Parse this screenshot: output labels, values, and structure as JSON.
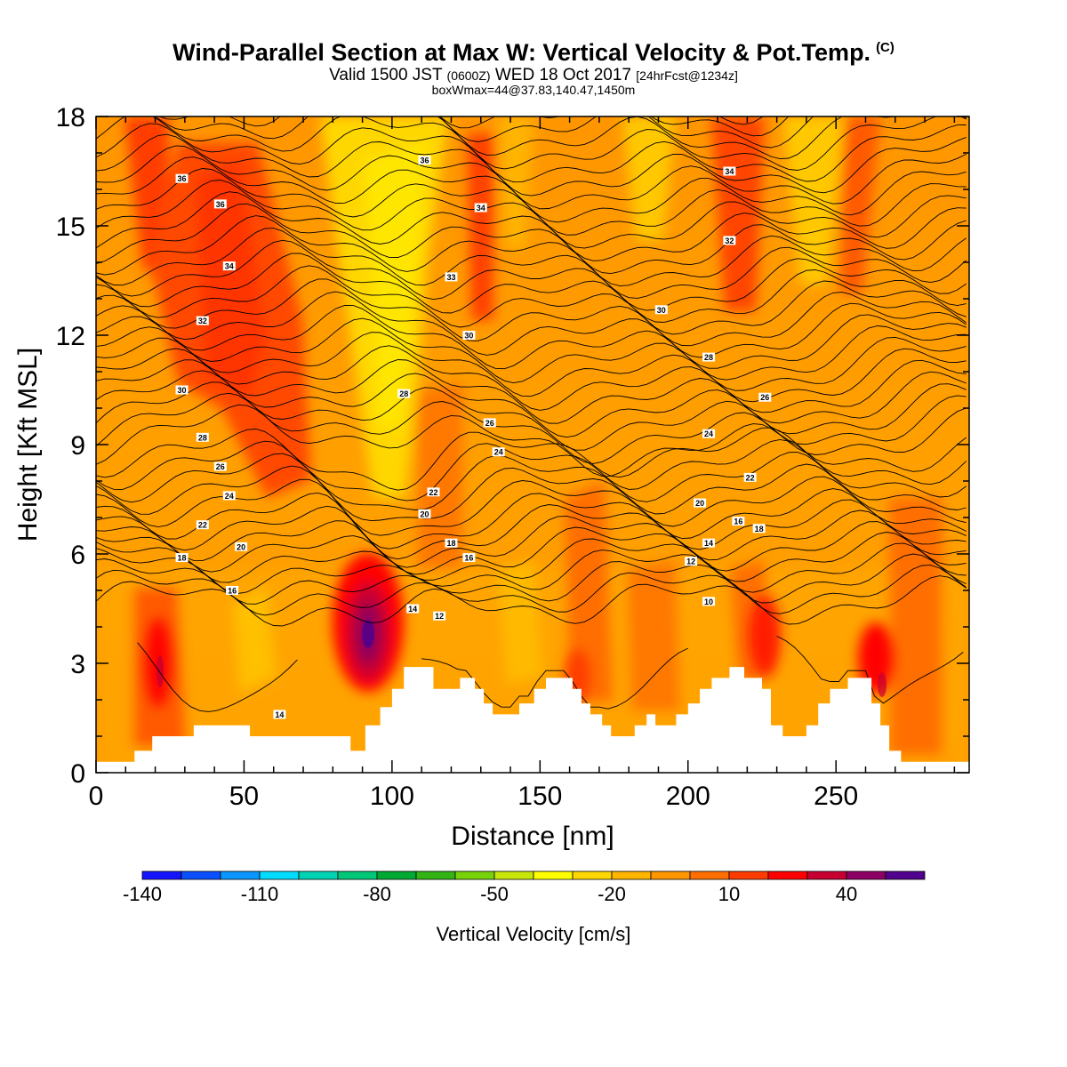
{
  "title": {
    "main": "Wind-Parallel Section at Max W: Vertical Velocity & Pot.Temp.",
    "copyright": "(C)",
    "valid_prefix": "Valid 1500 JST",
    "valid_utc": "(0600Z)",
    "valid_date": "WED 18 Oct 2017",
    "forecast": "[24hrFcst@1234z]",
    "box_info": "boxWmax=44@37.83,140.47,1450m"
  },
  "chart_data": {
    "type": "heatmap",
    "xlabel": "Distance [nm]",
    "ylabel": "Height [Kft MSL]",
    "xlim": [
      0,
      295
    ],
    "ylim": [
      0,
      18
    ],
    "x_ticks": [
      0,
      50,
      100,
      150,
      200,
      250
    ],
    "y_ticks": [
      0,
      3,
      6,
      9,
      12,
      15,
      18
    ],
    "colorbar": {
      "label": "Vertical Velocity [cm/s]",
      "tick_labels": [
        "-140",
        "-110",
        "-80",
        "-50",
        "-20",
        "10",
        "40"
      ],
      "tick_values": [
        -140,
        -110,
        -80,
        -50,
        -20,
        10,
        40
      ],
      "levels": [
        -140,
        -130,
        -120,
        -110,
        -100,
        -90,
        -80,
        -70,
        -60,
        -50,
        -40,
        -30,
        -20,
        -10,
        0,
        10,
        20,
        30,
        40,
        50,
        60
      ],
      "colors": [
        "#1414ff",
        "#0a50ff",
        "#0a96ff",
        "#00dcff",
        "#00d2b4",
        "#00c878",
        "#00aa32",
        "#32b414",
        "#78d20a",
        "#c8e60a",
        "#ffff00",
        "#ffd700",
        "#ffb400",
        "#ff9600",
        "#ff6e00",
        "#ff3c00",
        "#ff0000",
        "#c80032",
        "#8c0064",
        "#50008c"
      ]
    },
    "terrain": [
      [
        0,
        0.3
      ],
      [
        13,
        0.3
      ],
      [
        13,
        0.6
      ],
      [
        19,
        0.6
      ],
      [
        19,
        1.0
      ],
      [
        33,
        1.0
      ],
      [
        33,
        1.3
      ],
      [
        52,
        1.3
      ],
      [
        52,
        1.0
      ],
      [
        86,
        1.0
      ],
      [
        86,
        0.6
      ],
      [
        91,
        0.6
      ],
      [
        91,
        1.3
      ],
      [
        96,
        1.3
      ],
      [
        96,
        1.8
      ],
      [
        100,
        1.8
      ],
      [
        100,
        2.3
      ],
      [
        104,
        2.3
      ],
      [
        104,
        2.9
      ],
      [
        114,
        2.9
      ],
      [
        114,
        2.3
      ],
      [
        123,
        2.3
      ],
      [
        123,
        2.6
      ],
      [
        128,
        2.6
      ],
      [
        128,
        2.3
      ],
      [
        131,
        2.3
      ],
      [
        131,
        1.9
      ],
      [
        134,
        1.9
      ],
      [
        134,
        1.6
      ],
      [
        143,
        1.6
      ],
      [
        143,
        1.9
      ],
      [
        148,
        1.9
      ],
      [
        148,
        2.3
      ],
      [
        152,
        2.3
      ],
      [
        152,
        2.6
      ],
      [
        161,
        2.6
      ],
      [
        161,
        2.3
      ],
      [
        164,
        2.3
      ],
      [
        164,
        1.9
      ],
      [
        167,
        1.9
      ],
      [
        167,
        1.6
      ],
      [
        171,
        1.6
      ],
      [
        171,
        1.3
      ],
      [
        174,
        1.3
      ],
      [
        174,
        1.0
      ],
      [
        182,
        1.0
      ],
      [
        182,
        1.3
      ],
      [
        186,
        1.3
      ],
      [
        186,
        1.6
      ],
      [
        189,
        1.6
      ],
      [
        189,
        1.3
      ],
      [
        196,
        1.3
      ],
      [
        196,
        1.6
      ],
      [
        200,
        1.6
      ],
      [
        200,
        1.9
      ],
      [
        204,
        1.9
      ],
      [
        204,
        2.3
      ],
      [
        208,
        2.3
      ],
      [
        208,
        2.6
      ],
      [
        214,
        2.6
      ],
      [
        214,
        2.9
      ],
      [
        219,
        2.9
      ],
      [
        219,
        2.6
      ],
      [
        225,
        2.6
      ],
      [
        225,
        2.3
      ],
      [
        228,
        2.3
      ],
      [
        228,
        1.3
      ],
      [
        232,
        1.3
      ],
      [
        232,
        1.0
      ],
      [
        240,
        1.0
      ],
      [
        240,
        1.3
      ],
      [
        244,
        1.3
      ],
      [
        244,
        1.9
      ],
      [
        248,
        1.9
      ],
      [
        248,
        2.3
      ],
      [
        254,
        2.3
      ],
      [
        254,
        2.6
      ],
      [
        262,
        2.6
      ],
      [
        262,
        1.9
      ],
      [
        265,
        1.9
      ],
      [
        265,
        1.3
      ],
      [
        268,
        1.3
      ],
      [
        268,
        0.6
      ],
      [
        272,
        0.6
      ],
      [
        272,
        0.3
      ],
      [
        295,
        0.3
      ]
    ],
    "contour_labels": [
      {
        "text": "36",
        "x": 29,
        "y": 16.3
      },
      {
        "text": "36",
        "x": 42,
        "y": 15.6
      },
      {
        "text": "34",
        "x": 45,
        "y": 13.9
      },
      {
        "text": "32",
        "x": 36,
        "y": 12.4
      },
      {
        "text": "30",
        "x": 29,
        "y": 10.5
      },
      {
        "text": "28",
        "x": 36,
        "y": 9.2
      },
      {
        "text": "26",
        "x": 42,
        "y": 8.4
      },
      {
        "text": "24",
        "x": 45,
        "y": 7.6
      },
      {
        "text": "22",
        "x": 36,
        "y": 6.8
      },
      {
        "text": "20",
        "x": 49,
        "y": 6.2
      },
      {
        "text": "18",
        "x": 29,
        "y": 5.9
      },
      {
        "text": "16",
        "x": 46,
        "y": 5.0
      },
      {
        "text": "14",
        "x": 62,
        "y": 1.6
      },
      {
        "text": "36",
        "x": 111,
        "y": 16.8
      },
      {
        "text": "34",
        "x": 130,
        "y": 15.5
      },
      {
        "text": "33",
        "x": 120,
        "y": 13.6
      },
      {
        "text": "30",
        "x": 126,
        "y": 12.0
      },
      {
        "text": "28",
        "x": 104,
        "y": 10.4
      },
      {
        "text": "26",
        "x": 133,
        "y": 9.6
      },
      {
        "text": "24",
        "x": 136,
        "y": 8.8
      },
      {
        "text": "22",
        "x": 114,
        "y": 7.7
      },
      {
        "text": "20",
        "x": 111,
        "y": 7.1
      },
      {
        "text": "18",
        "x": 120,
        "y": 6.3
      },
      {
        "text": "16",
        "x": 126,
        "y": 5.9
      },
      {
        "text": "14",
        "x": 107,
        "y": 4.5
      },
      {
        "text": "12",
        "x": 116,
        "y": 4.3
      },
      {
        "text": "34",
        "x": 214,
        "y": 16.5
      },
      {
        "text": "32",
        "x": 214,
        "y": 14.6
      },
      {
        "text": "30",
        "x": 191,
        "y": 12.7
      },
      {
        "text": "28",
        "x": 207,
        "y": 11.4
      },
      {
        "text": "26",
        "x": 226,
        "y": 10.3
      },
      {
        "text": "24",
        "x": 207,
        "y": 9.3
      },
      {
        "text": "22",
        "x": 221,
        "y": 8.1
      },
      {
        "text": "20",
        "x": 204,
        "y": 7.4
      },
      {
        "text": "16",
        "x": 217,
        "y": 6.9
      },
      {
        "text": "18",
        "x": 224,
        "y": 6.7
      },
      {
        "text": "14",
        "x": 207,
        "y": 6.3
      },
      {
        "text": "12",
        "x": 201,
        "y": 5.8
      },
      {
        "text": "10",
        "x": 207,
        "y": 4.7
      }
    ]
  }
}
